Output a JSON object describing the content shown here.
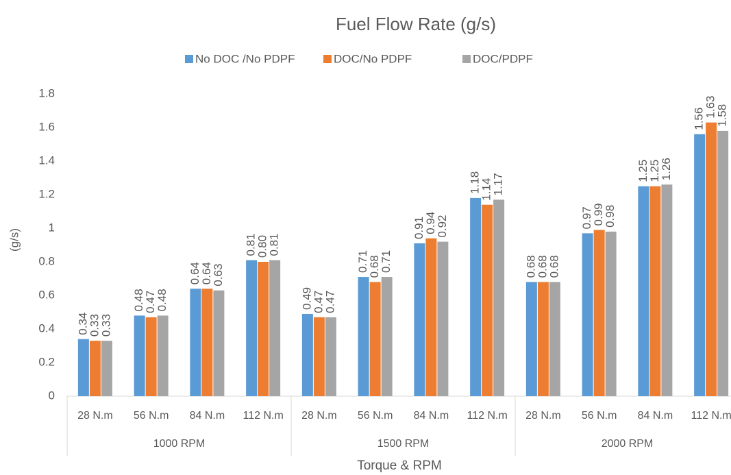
{
  "chart_data": {
    "type": "bar",
    "title": "Fuel Flow Rate (g/s)",
    "y_label": "(g/s)",
    "x_label": "Torque & RPM",
    "categories": [
      "28 N.m",
      "56 N.m",
      "84 N.m",
      "112 N.m",
      "28 N.m",
      "56 N.m",
      "84 N.m",
      "112 N.m",
      "28 N.m",
      "56 N.m",
      "84 N.m",
      "112 N.m"
    ],
    "groups": [
      {
        "label": "1000 RPM",
        "span": 4
      },
      {
        "label": "1500 RPM",
        "span": 4
      },
      {
        "label": "2000 RPM",
        "span": 4
      }
    ],
    "series": [
      {
        "name": "No DOC /No PDPF",
        "color": "#5b9bd5",
        "values": [
          0.34,
          0.48,
          0.64,
          0.81,
          0.49,
          0.71,
          0.91,
          1.18,
          0.68,
          0.97,
          1.25,
          1.56
        ],
        "value_labels": [
          "0.34",
          "0.48",
          "0.64",
          "0.81",
          "0.49",
          "0.71",
          "0.91",
          "1.18",
          "0.68",
          "0.97",
          "1.25",
          "1.56"
        ]
      },
      {
        "name": "DOC/No PDPF",
        "color": "#ed7d31",
        "values": [
          0.33,
          0.47,
          0.64,
          0.8,
          0.47,
          0.68,
          0.94,
          1.14,
          0.68,
          0.99,
          1.25,
          1.63
        ],
        "value_labels": [
          "0.33",
          "0.47",
          "0.64",
          "0.80",
          "0.47",
          "0.68",
          "0.94",
          "1.14",
          "0.68",
          "0.99",
          "1.25",
          "1.63"
        ]
      },
      {
        "name": "DOC/PDPF",
        "color": "#a5a5a5",
        "values": [
          0.33,
          0.48,
          0.63,
          0.81,
          0.47,
          0.71,
          0.92,
          1.17,
          0.68,
          0.98,
          1.26,
          1.58
        ],
        "value_labels": [
          "0.33",
          "0.48",
          "0.63",
          "0.81",
          "0.47",
          "0.71",
          "0.92",
          "1.17",
          "0.68",
          "0.98",
          "1.26",
          "1.58"
        ]
      }
    ],
    "ylim": [
      0,
      2
    ],
    "yticks": [
      0,
      0.2,
      0.4,
      0.6,
      0.8,
      1,
      1.2,
      1.4,
      1.6,
      1.8
    ],
    "grid": false,
    "legend": "top"
  }
}
